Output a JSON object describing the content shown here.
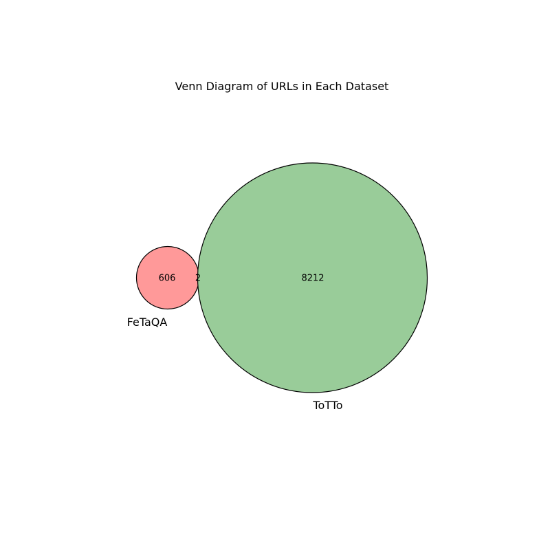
{
  "chart_data": {
    "type": "venn",
    "title": "Venn Diagram of URLs in Each Dataset",
    "sets": [
      {
        "name": "FeTaQA",
        "only": 606,
        "color": "#ff9999"
      },
      {
        "name": "ToTTo",
        "only": 8212,
        "color": "#99cc99"
      }
    ],
    "intersection": 2
  }
}
